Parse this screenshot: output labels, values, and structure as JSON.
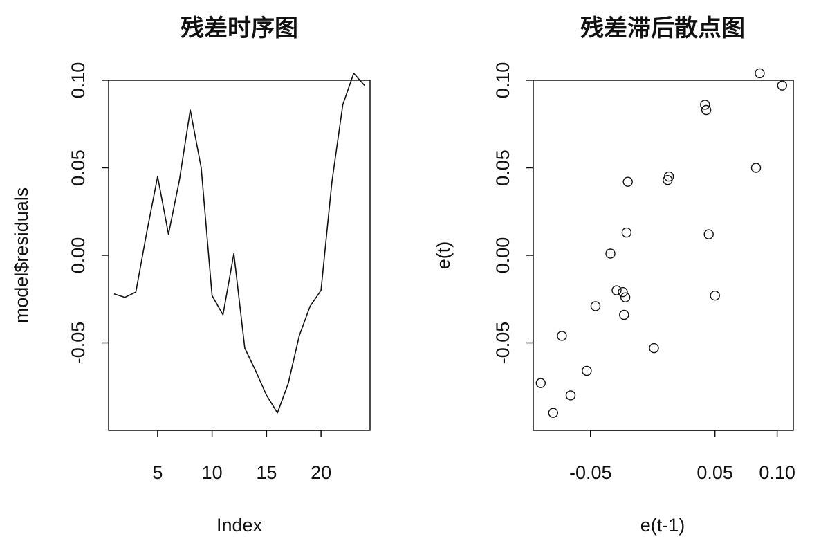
{
  "chart_data": [
    {
      "type": "line",
      "title": "残差时序图",
      "xlabel": "Index",
      "ylabel": "model$residuals",
      "xlim": [
        0.5,
        24.5
      ],
      "ylim": [
        -0.1,
        0.1
      ],
      "x_ticks": [
        "5",
        "10",
        "15",
        "20"
      ],
      "y_ticks": [
        "-0.05",
        "0.00",
        "0.05",
        "0.10"
      ],
      "grid": false,
      "x": [
        1,
        2,
        3,
        4,
        5,
        6,
        7,
        8,
        9,
        10,
        11,
        12,
        13,
        14,
        15,
        16,
        17,
        18,
        19,
        20,
        21,
        22,
        23,
        24
      ],
      "y": [
        -0.022,
        -0.024,
        -0.021,
        0.013,
        0.045,
        0.012,
        0.043,
        0.083,
        0.05,
        -0.023,
        -0.034,
        0.001,
        -0.053,
        -0.066,
        -0.08,
        -0.09,
        -0.073,
        -0.046,
        -0.029,
        -0.02,
        0.042,
        0.086,
        0.104,
        0.097
      ]
    },
    {
      "type": "scatter",
      "title": "残差滞后散点图",
      "xlabel": "e(t-1)",
      "ylabel": "e(t)",
      "xlim": [
        -0.096,
        0.113
      ],
      "ylim": [
        -0.1,
        0.1
      ],
      "x_ticks": [
        "-0.05",
        "0.05",
        "0.10"
      ],
      "y_ticks": [
        "-0.05",
        "0.00",
        "0.05",
        "0.10"
      ],
      "grid": false,
      "x": [
        -0.022,
        -0.024,
        -0.021,
        0.013,
        0.045,
        0.012,
        0.043,
        0.083,
        0.05,
        -0.023,
        -0.034,
        0.001,
        -0.053,
        -0.066,
        -0.08,
        -0.09,
        -0.073,
        -0.046,
        -0.029,
        -0.02,
        0.042,
        0.086,
        0.104
      ],
      "y": [
        -0.024,
        -0.021,
        0.013,
        0.045,
        0.012,
        0.043,
        0.083,
        0.05,
        -0.023,
        -0.034,
        0.001,
        -0.053,
        -0.066,
        -0.08,
        -0.09,
        -0.073,
        -0.046,
        -0.029,
        -0.02,
        0.042,
        0.086,
        0.104,
        0.097
      ]
    }
  ]
}
